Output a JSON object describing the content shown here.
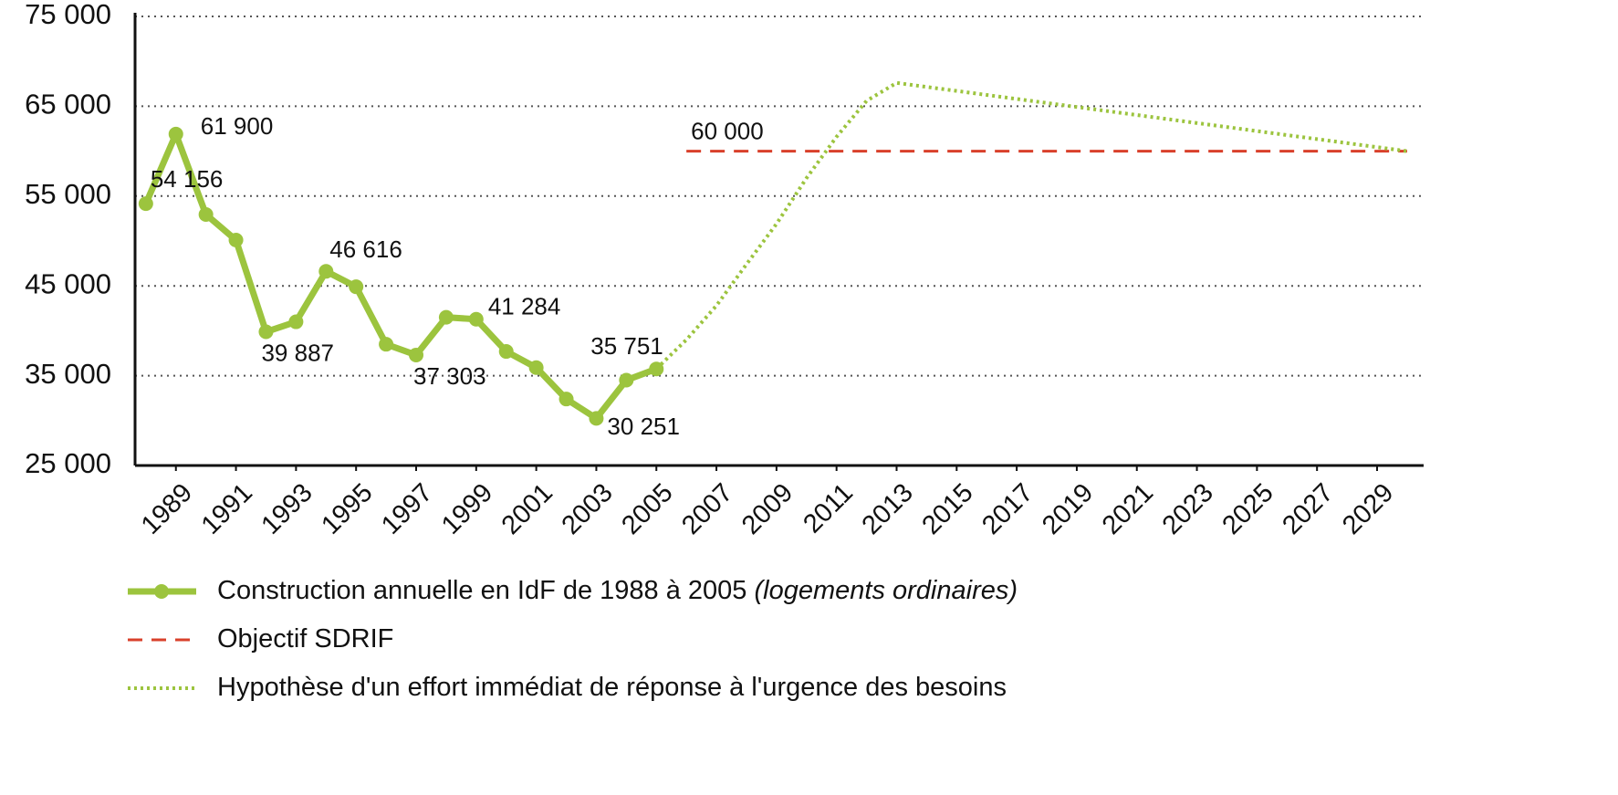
{
  "chart_data": {
    "type": "line",
    "xlim": [
      1987.64,
      2030.55
    ],
    "xticks": [
      1989,
      1991,
      1993,
      1995,
      1997,
      1999,
      2001,
      2003,
      2005,
      2007,
      2009,
      2011,
      2013,
      2015,
      2017,
      2019,
      2021,
      2023,
      2025,
      2027,
      2029
    ],
    "ylim": [
      25000,
      75000
    ],
    "yticks": [
      {
        "value": 25000,
        "label": "25 000"
      },
      {
        "value": 35000,
        "label": "35 000"
      },
      {
        "value": 45000,
        "label": "45 000"
      },
      {
        "value": 55000,
        "label": "55 000"
      },
      {
        "value": 65000,
        "label": "65 000"
      },
      {
        "value": 75000,
        "label": "75 000"
      }
    ],
    "grid": true,
    "series": [
      {
        "name": "Construction annuelle en IdF de 1988 à 2005",
        "note": "(logements ordinaires)",
        "color": "#9cc43e",
        "style": "solid",
        "x": [
          1988,
          1989,
          1990,
          1991,
          1992,
          1993,
          1994,
          1995,
          1996,
          1997,
          1998,
          1999,
          2000,
          2001,
          2002,
          2003,
          2004,
          2005
        ],
        "values": [
          54156,
          61900,
          52950,
          50100,
          39887,
          41000,
          46616,
          44900,
          38500,
          37303,
          41500,
          41284,
          37700,
          35900,
          32400,
          30251,
          34500,
          35751
        ],
        "value_labels": [
          "54 156",
          "61 900",
          null,
          null,
          "39 887",
          null,
          "46 616",
          null,
          null,
          "37 303",
          null,
          "41 284",
          null,
          null,
          null,
          "30 251",
          null,
          "35 751"
        ]
      },
      {
        "name": "Objectif SDRIF",
        "color": "#d9402b",
        "style": "dashed",
        "x": [
          2006,
          2030
        ],
        "values": [
          60000,
          60000
        ],
        "value_labels": [
          "60 000",
          null
        ]
      },
      {
        "name": "Hypothèse d'un effort immédiat de réponse à l'urgence des besoins",
        "color": "#9cc43e",
        "style": "dotted",
        "x": [
          2005,
          2006,
          2007,
          2008,
          2009,
          2010,
          2011,
          2012,
          2013,
          2030
        ],
        "values": [
          35751,
          39000,
          42800,
          47400,
          51900,
          57000,
          61600,
          65600,
          67600,
          60000
        ]
      }
    ]
  }
}
